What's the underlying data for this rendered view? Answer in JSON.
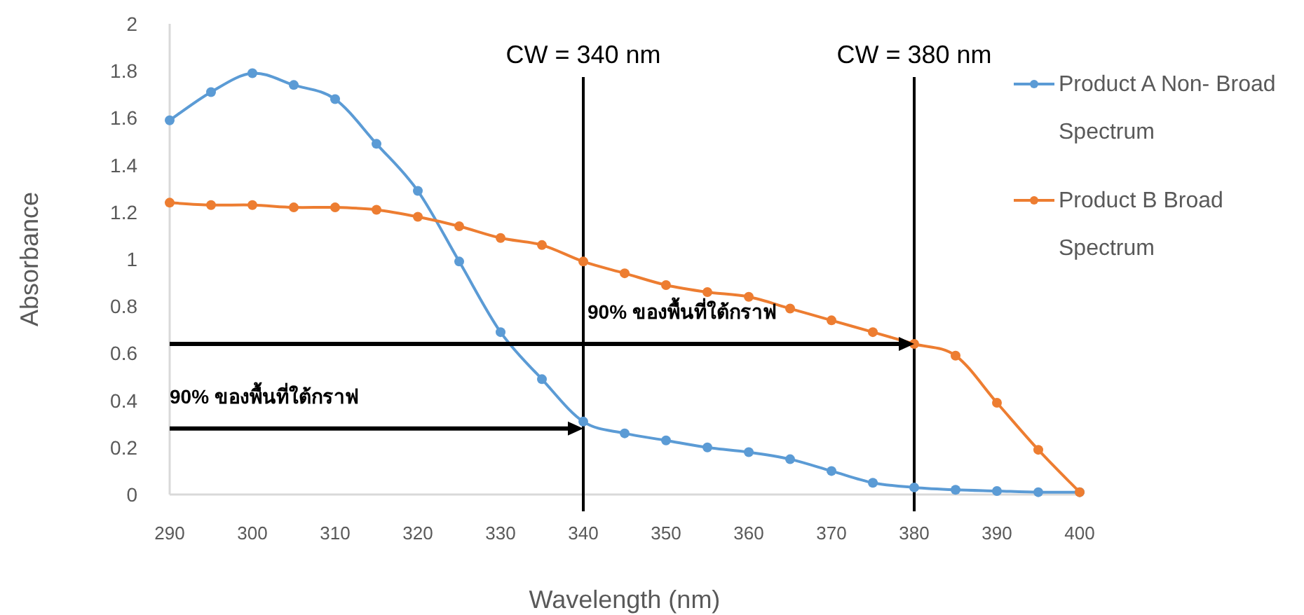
{
  "chart_data": {
    "type": "line",
    "xlabel": "Wavelength (nm)",
    "ylabel": "Absorbance",
    "x": [
      290,
      295,
      300,
      305,
      310,
      315,
      320,
      325,
      330,
      335,
      340,
      345,
      350,
      355,
      360,
      365,
      370,
      375,
      380,
      385,
      390,
      395,
      400
    ],
    "series": [
      {
        "name": "Product A Non- Broad Spectrum",
        "color": "#5b9bd5",
        "values": [
          1.59,
          1.71,
          1.79,
          1.74,
          1.68,
          1.49,
          1.29,
          0.99,
          0.69,
          0.49,
          0.31,
          0.26,
          0.23,
          0.2,
          0.18,
          0.15,
          0.1,
          0.05,
          0.03,
          0.02,
          0.015,
          0.01,
          0.01
        ]
      },
      {
        "name": "Product B Broad Spectrum",
        "color": "#ed7d31",
        "values": [
          1.24,
          1.23,
          1.23,
          1.22,
          1.22,
          1.21,
          1.18,
          1.14,
          1.09,
          1.06,
          0.99,
          0.94,
          0.89,
          0.86,
          0.84,
          0.79,
          0.74,
          0.69,
          0.64,
          0.59,
          0.39,
          0.19,
          0.01
        ]
      }
    ],
    "xlim": [
      290,
      400
    ],
    "xticks": [
      290,
      300,
      310,
      320,
      330,
      340,
      350,
      360,
      370,
      380,
      390,
      400
    ],
    "ylim": [
      0,
      2
    ],
    "yticks": [
      0,
      0.2,
      0.4,
      0.6,
      0.8,
      1,
      1.2,
      1.4,
      1.6,
      1.8,
      2
    ],
    "ref_lines": [
      {
        "axis": "x",
        "value": 340,
        "label": "CW = 340 nm",
        "color": "#000000"
      },
      {
        "axis": "x",
        "value": 380,
        "label": "CW = 380 nm",
        "color": "#000000"
      }
    ],
    "annotations": [
      "90% ของพื้นที่ใต้กราฟ",
      "90% ของพื้นที่ใต้กราฟ"
    ],
    "marker": "circle",
    "legend": "right",
    "grid": false
  }
}
